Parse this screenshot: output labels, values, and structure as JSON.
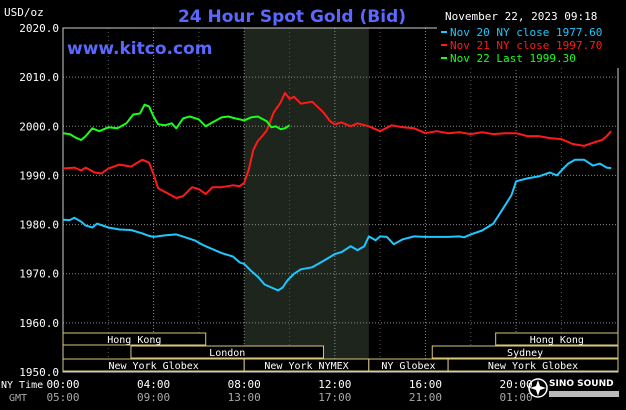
{
  "chart_data": {
    "type": "line",
    "title": "24 Hour Spot Gold (Bid)",
    "ylabel": "USD/oz",
    "ylim": [
      1950,
      2020
    ],
    "yticks": [
      "2020.0",
      "2010.0",
      "2000.0",
      "1990.0",
      "1980.0",
      "1970.0",
      "1960.0",
      "1950.0"
    ],
    "grid": true,
    "legend_position": "top-right",
    "timestamp": "November 22, 2023 09:18",
    "website": "www.kitco.com",
    "x_axis": {
      "ny_time_label": "NY Time",
      "gmt_label": "GMT",
      "ny_ticks": [
        "00:00",
        "04:00",
        "08:00",
        "12:00",
        "16:00",
        "20:00"
      ],
      "gmt_ticks": [
        "05:00",
        "09:00",
        "13:00",
        "17:00",
        "21:00",
        "01:00"
      ],
      "x_hours_range": [
        0,
        24.5
      ]
    },
    "highlight_region_hours": [
      8.0,
      13.5
    ],
    "series": [
      {
        "name": "Nov 20 NY close 1977.60",
        "color": "#1ec8ff",
        "points": [
          [
            0,
            1981.0
          ],
          [
            0.3,
            1980.9
          ],
          [
            0.5,
            1981.4
          ],
          [
            0.8,
            1980.6
          ],
          [
            1,
            1979.8
          ],
          [
            1.3,
            1979.4
          ],
          [
            1.5,
            1980.2
          ],
          [
            2,
            1979.4
          ],
          [
            2.5,
            1979.0
          ],
          [
            3,
            1978.9
          ],
          [
            3.5,
            1978.2
          ],
          [
            3.8,
            1977.7
          ],
          [
            4,
            1977.5
          ],
          [
            4.5,
            1977.8
          ],
          [
            5,
            1978.0
          ],
          [
            5.4,
            1977.4
          ],
          [
            5.8,
            1976.8
          ],
          [
            6.2,
            1975.8
          ],
          [
            6.5,
            1975.2
          ],
          [
            7,
            1974.2
          ],
          [
            7.5,
            1973.5
          ],
          [
            7.8,
            1972.3
          ],
          [
            8,
            1972.0
          ],
          [
            8.3,
            1970.6
          ],
          [
            8.6,
            1969.4
          ],
          [
            8.9,
            1967.8
          ],
          [
            9.2,
            1967.2
          ],
          [
            9.5,
            1966.6
          ],
          [
            9.7,
            1967.2
          ],
          [
            9.9,
            1968.6
          ],
          [
            10.2,
            1970.0
          ],
          [
            10.5,
            1970.9
          ],
          [
            11,
            1971.3
          ],
          [
            11.5,
            1972.6
          ],
          [
            12,
            1974.0
          ],
          [
            12.3,
            1974.4
          ],
          [
            12.7,
            1975.6
          ],
          [
            13,
            1974.8
          ],
          [
            13.3,
            1975.6
          ],
          [
            13.5,
            1977.6
          ],
          [
            13.8,
            1976.8
          ],
          [
            14,
            1977.6
          ],
          [
            14.3,
            1977.5
          ],
          [
            14.6,
            1976.0
          ],
          [
            15,
            1977.0
          ],
          [
            15.5,
            1977.6
          ],
          [
            16,
            1977.5
          ],
          [
            16.5,
            1977.5
          ],
          [
            17,
            1977.5
          ],
          [
            17.5,
            1977.6
          ],
          [
            17.7,
            1977.4
          ],
          [
            18,
            1978.0
          ],
          [
            18.5,
            1978.8
          ],
          [
            19,
            1980.2
          ],
          [
            19.5,
            1983.8
          ],
          [
            19.8,
            1986.0
          ],
          [
            20,
            1988.8
          ],
          [
            20.5,
            1989.4
          ],
          [
            21,
            1989.8
          ],
          [
            21.5,
            1990.6
          ],
          [
            21.8,
            1990.0
          ],
          [
            22,
            1991.0
          ],
          [
            22.3,
            1992.4
          ],
          [
            22.6,
            1993.2
          ],
          [
            23,
            1993.2
          ],
          [
            23.4,
            1992.0
          ],
          [
            23.7,
            1992.4
          ],
          [
            24,
            1991.6
          ],
          [
            24.2,
            1991.5
          ]
        ]
      },
      {
        "name": "Nov 21 NY close 1997.70",
        "color": "#ff1a1a",
        "points": [
          [
            0,
            1991.4
          ],
          [
            0.5,
            1991.6
          ],
          [
            0.8,
            1991.0
          ],
          [
            1,
            1991.6
          ],
          [
            1.4,
            1990.6
          ],
          [
            1.7,
            1990.4
          ],
          [
            2,
            1991.4
          ],
          [
            2.5,
            1992.2
          ],
          [
            3,
            1991.8
          ],
          [
            3.5,
            1993.2
          ],
          [
            3.8,
            1992.6
          ],
          [
            4,
            1990.2
          ],
          [
            4.2,
            1987.4
          ],
          [
            4.6,
            1986.4
          ],
          [
            5,
            1985.4
          ],
          [
            5.3,
            1985.8
          ],
          [
            5.7,
            1987.6
          ],
          [
            6,
            1987.2
          ],
          [
            6.3,
            1986.2
          ],
          [
            6.6,
            1987.6
          ],
          [
            7,
            1987.6
          ],
          [
            7.5,
            1988.0
          ],
          [
            7.8,
            1987.8
          ],
          [
            8,
            1988.5
          ],
          [
            8.2,
            1991.2
          ],
          [
            8.4,
            1995.2
          ],
          [
            8.6,
            1997.0
          ],
          [
            8.8,
            1998.0
          ],
          [
            9,
            1999.2
          ],
          [
            9.3,
            2002.8
          ],
          [
            9.6,
            2004.8
          ],
          [
            9.8,
            2006.8
          ],
          [
            10,
            2005.6
          ],
          [
            10.2,
            2006.0
          ],
          [
            10.5,
            2004.6
          ],
          [
            11,
            2005.0
          ],
          [
            11.5,
            2002.8
          ],
          [
            11.8,
            2001.0
          ],
          [
            12,
            2000.4
          ],
          [
            12.3,
            2000.8
          ],
          [
            12.7,
            2000.0
          ],
          [
            13,
            2000.6
          ],
          [
            13.5,
            2000.0
          ],
          [
            14,
            1999.0
          ],
          [
            14.5,
            2000.2
          ],
          [
            15,
            1999.8
          ],
          [
            15.5,
            1999.6
          ],
          [
            16,
            1998.6
          ],
          [
            16.5,
            1999.0
          ],
          [
            17,
            1998.6
          ],
          [
            17.5,
            1998.8
          ],
          [
            18,
            1998.4
          ],
          [
            18.5,
            1998.8
          ],
          [
            19,
            1998.4
          ],
          [
            19.5,
            1998.6
          ],
          [
            20,
            1998.6
          ],
          [
            20.5,
            1998.0
          ],
          [
            21,
            1998.0
          ],
          [
            21.5,
            1997.6
          ],
          [
            22,
            1997.4
          ],
          [
            22.5,
            1996.4
          ],
          [
            23,
            1996.0
          ],
          [
            23.5,
            1996.8
          ],
          [
            23.8,
            1997.2
          ],
          [
            24,
            1998.0
          ],
          [
            24.2,
            1999.0
          ]
        ]
      },
      {
        "name": "Nov 22 Last 1999.30",
        "color": "#1aff1a",
        "points": [
          [
            0,
            1998.6
          ],
          [
            0.3,
            1998.4
          ],
          [
            0.6,
            1997.6
          ],
          [
            0.8,
            1997.2
          ],
          [
            1,
            1998.0
          ],
          [
            1.3,
            1999.6
          ],
          [
            1.6,
            1999.0
          ],
          [
            2,
            1999.8
          ],
          [
            2.4,
            1999.6
          ],
          [
            2.8,
            2000.6
          ],
          [
            3.1,
            2002.4
          ],
          [
            3.4,
            2002.6
          ],
          [
            3.6,
            2004.4
          ],
          [
            3.8,
            2004.0
          ],
          [
            4,
            2002.0
          ],
          [
            4.2,
            2000.4
          ],
          [
            4.5,
            2000.2
          ],
          [
            4.8,
            2000.6
          ],
          [
            5,
            1999.6
          ],
          [
            5.3,
            2001.6
          ],
          [
            5.6,
            2002.0
          ],
          [
            6,
            2001.4
          ],
          [
            6.3,
            2000.0
          ],
          [
            6.6,
            2000.8
          ],
          [
            7,
            2001.8
          ],
          [
            7.3,
            2002.0
          ],
          [
            7.6,
            2001.6
          ],
          [
            8,
            2001.2
          ],
          [
            8.3,
            2001.8
          ],
          [
            8.6,
            2002.0
          ],
          [
            9,
            2001.0
          ],
          [
            9.2,
            1999.8
          ],
          [
            9.4,
            2000.0
          ],
          [
            9.6,
            1999.4
          ],
          [
            9.8,
            1999.6
          ],
          [
            10,
            2000.2
          ]
        ]
      }
    ],
    "sessions": [
      {
        "name": "Hong Kong",
        "row": 0,
        "start": 0.0,
        "end": 6.3
      },
      {
        "name": "Hong Kong",
        "row": 0,
        "start": 19.1,
        "end": 24.5
      },
      {
        "name": "London",
        "row": 1,
        "start": 3.0,
        "end": 11.5
      },
      {
        "name": "Sydney",
        "row": 1,
        "start": 16.3,
        "end": 24.5
      },
      {
        "name": "New York Globex",
        "row": 2,
        "start": 0.0,
        "end": 8.0
      },
      {
        "name": "New York NYMEX",
        "row": 2,
        "start": 8.0,
        "end": 13.5
      },
      {
        "name": "NY Globex",
        "row": 2,
        "start": 13.5,
        "end": 17.0
      },
      {
        "name": "New York Globex",
        "row": 2,
        "start": 17.0,
        "end": 24.5
      }
    ],
    "logo": "SINO SOUND"
  }
}
